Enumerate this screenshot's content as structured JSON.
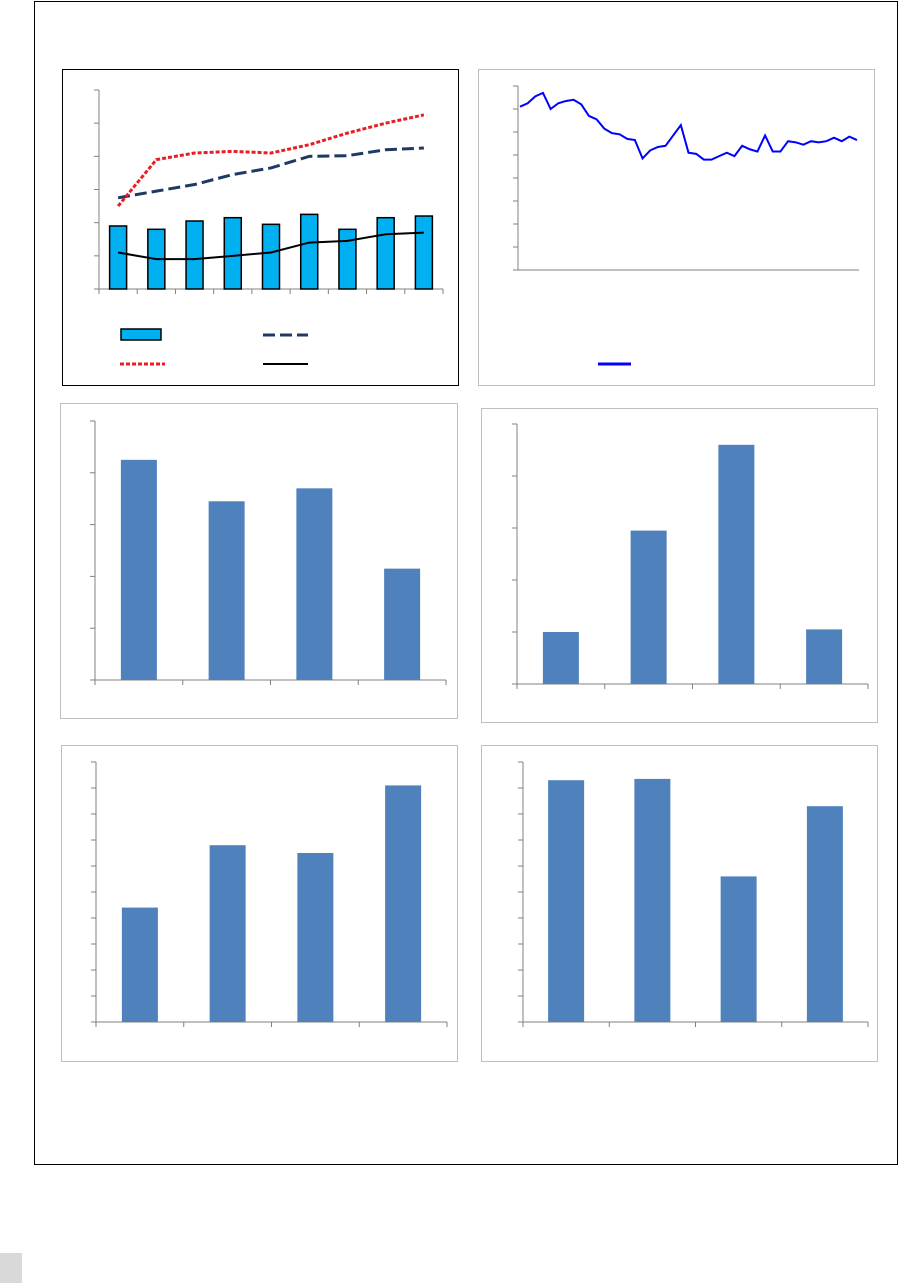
{
  "colors": {
    "bar_light": "#00b0f0",
    "bar_blue": "#4f81bd",
    "series_navy": "#1f3864",
    "series_red": "#e81e25",
    "series_black": "#000000",
    "series_blue_line": "#0000ff",
    "axis": "#808080"
  },
  "chart_data": [
    {
      "type": "bar",
      "id": "combo",
      "categories": [
        "",
        "",
        "",
        "",
        "",
        "",
        "",
        "",
        ""
      ],
      "ylim": [
        0,
        6
      ],
      "series": [
        {
          "kind": "bar",
          "values": [
            1.9,
            1.8,
            2.05,
            2.15,
            1.95,
            2.25,
            1.8,
            2.15,
            2.2
          ]
        },
        {
          "kind": "line-dashed",
          "values": [
            2.75,
            2.95,
            3.15,
            3.45,
            3.65,
            4.0,
            4.02,
            4.2,
            4.25
          ]
        },
        {
          "kind": "line-dotted",
          "values": [
            2.5,
            3.9,
            4.1,
            4.15,
            4.1,
            4.35,
            4.7,
            5.0,
            5.25
          ]
        },
        {
          "kind": "line-solid",
          "values": [
            1.1,
            0.9,
            0.9,
            1.0,
            1.1,
            1.4,
            1.45,
            1.65,
            1.7
          ]
        }
      ],
      "legend_position": "bottom",
      "grid": false
    },
    {
      "type": "line",
      "id": "timeseries",
      "ylim": [
        0,
        8
      ],
      "series": [
        {
          "values": [
            7.1,
            7.25,
            7.55,
            7.7,
            7.0,
            7.25,
            7.35,
            7.4,
            7.2,
            6.7,
            6.55,
            6.15,
            5.95,
            5.9,
            5.7,
            5.65,
            4.85,
            5.2,
            5.35,
            5.4,
            5.85,
            6.3,
            5.1,
            5.05,
            4.8,
            4.8,
            4.95,
            5.1,
            4.95,
            5.4,
            5.25,
            5.15,
            5.85,
            5.15,
            5.15,
            5.6,
            5.55,
            5.45,
            5.6,
            5.55,
            5.6,
            5.75,
            5.6,
            5.8,
            5.65
          ]
        }
      ],
      "legend_position": "bottom",
      "grid": false
    },
    {
      "type": "bar",
      "id": "bars-a",
      "categories": [
        "",
        "",
        "",
        ""
      ],
      "values": [
        4.25,
        3.45,
        3.7,
        2.15
      ],
      "ylim": [
        0,
        5
      ],
      "grid": false
    },
    {
      "type": "bar",
      "id": "bars-b",
      "categories": [
        "",
        "",
        "",
        ""
      ],
      "values": [
        1.0,
        2.95,
        4.6,
        1.05
      ],
      "ylim": [
        0,
        5
      ],
      "grid": false
    },
    {
      "type": "bar",
      "id": "bars-c",
      "categories": [
        "",
        "",
        "",
        ""
      ],
      "values": [
        4.4,
        6.8,
        6.5,
        9.1
      ],
      "ylim": [
        0,
        10
      ],
      "grid": false
    },
    {
      "type": "bar",
      "id": "bars-d",
      "categories": [
        "",
        "",
        "",
        ""
      ],
      "values": [
        9.3,
        9.35,
        5.6,
        8.3
      ],
      "ylim": [
        0,
        10
      ],
      "grid": false
    }
  ]
}
